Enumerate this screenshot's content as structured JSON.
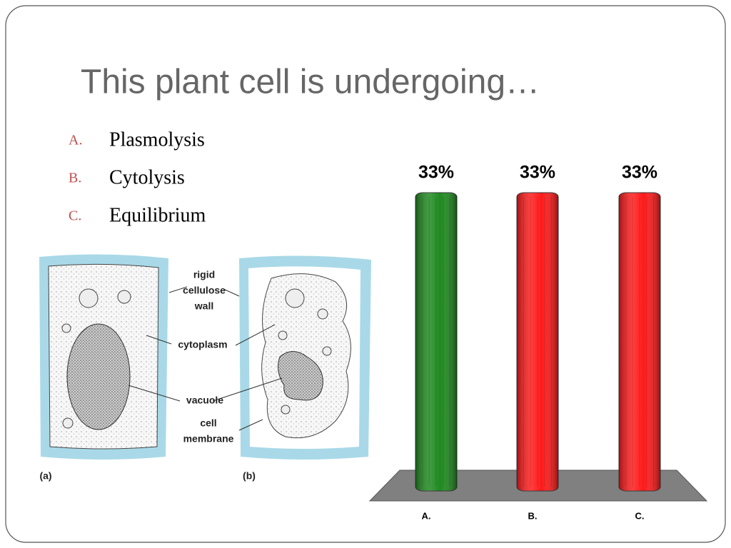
{
  "title": "This plant cell is undergoing…",
  "options": [
    {
      "letter": "A.",
      "text": "Plasmolysis"
    },
    {
      "letter": "B.",
      "text": "Cytolysis"
    },
    {
      "letter": "C.",
      "text": "Equilibrium"
    }
  ],
  "diagram": {
    "labels": [
      {
        "lines": [
          "rigid",
          "cellulose",
          "wall"
        ]
      },
      {
        "lines": [
          "cytoplasm"
        ]
      },
      {
        "lines": [
          "vacuole"
        ]
      },
      {
        "lines": [
          "cell",
          "membrane"
        ]
      }
    ],
    "panels": [
      "(a)",
      "(b)"
    ]
  },
  "chart_data": {
    "type": "bar",
    "categories": [
      "A.",
      "B.",
      "C."
    ],
    "values": [
      33,
      33,
      33
    ],
    "value_labels": [
      "33%",
      "33%",
      "33%"
    ],
    "colors": [
      "#1f8a1f",
      "#ff1a1a",
      "#ff1a1a"
    ]
  }
}
